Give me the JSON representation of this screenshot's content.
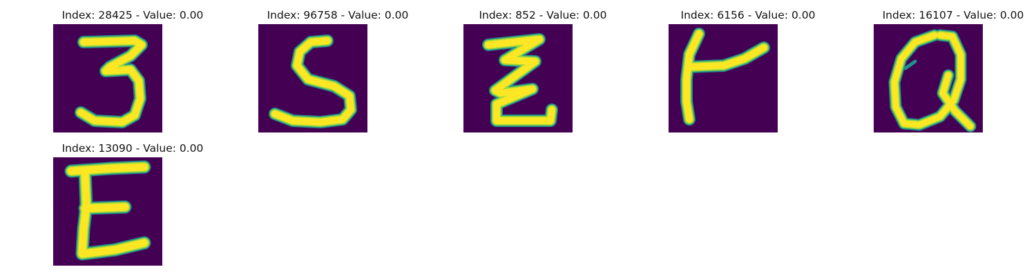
{
  "figure": {
    "background": "#ffffff",
    "image_background": "#440154",
    "stroke_colors": {
      "core": "#fde725",
      "mid": "#9bd93c",
      "edge": "#21918c"
    },
    "panels": [
      {
        "title": "Index: 28425 - Value: 0.00",
        "glyph": "3"
      },
      {
        "title": "Index: 96758 - Value: 0.00",
        "glyph": "S"
      },
      {
        "title": "Index: 852 - Value: 0.00",
        "glyph": "Z"
      },
      {
        "title": "Index: 6156 - Value: 0.00",
        "glyph": "K"
      },
      {
        "title": "Index: 16107 - Value: 0.00",
        "glyph": "Q"
      },
      {
        "title": "Index: 13090 - Value: 0.00",
        "glyph": "E"
      }
    ]
  }
}
